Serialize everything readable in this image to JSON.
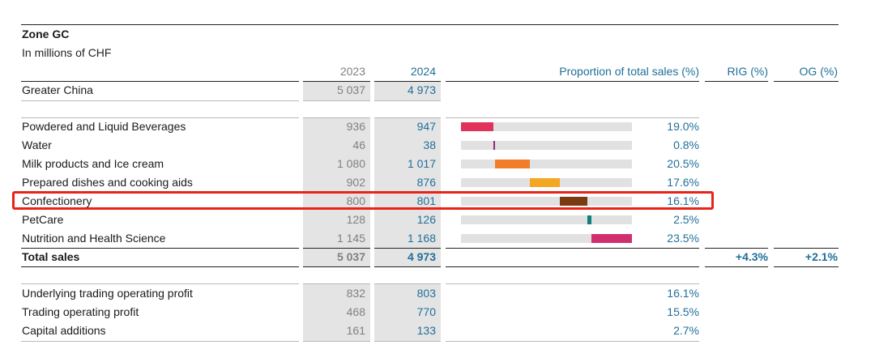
{
  "zone": {
    "title": "Zone GC",
    "subtitle": "In millions of CHF"
  },
  "headers": {
    "y2023": "2023",
    "y2024": "2024",
    "proportion": "Proportion of total sales (%)",
    "rig": "RIG (%)",
    "og": "OG (%)"
  },
  "greater_china": {
    "label": "Greater China",
    "v2023": "5 037",
    "v2024": "4 973"
  },
  "categories": [
    {
      "label": "Powdered and Liquid Beverages",
      "v2023": "936",
      "v2024": "947",
      "pct": "19.0%",
      "share": 19.0,
      "color": "#e0325a"
    },
    {
      "label": "Water",
      "v2023": "46",
      "v2024": "38",
      "pct": "0.8%",
      "share": 0.8,
      "color": "#8b2d7a"
    },
    {
      "label": "Milk products and Ice cream",
      "v2023": "1 080",
      "v2024": "1 017",
      "pct": "20.5%",
      "share": 20.5,
      "color": "#f07d2a"
    },
    {
      "label": "Prepared dishes and cooking aids",
      "v2023": "902",
      "v2024": "876",
      "pct": "17.6%",
      "share": 17.6,
      "color": "#f5a623"
    },
    {
      "label": "Confectionery",
      "v2023": "800",
      "v2024": "801",
      "pct": "16.1%",
      "share": 16.1,
      "color": "#7a3a12"
    },
    {
      "label": "PetCare",
      "v2023": "128",
      "v2024": "126",
      "pct": "2.5%",
      "share": 2.5,
      "color": "#137d7d"
    },
    {
      "label": "Nutrition and Health Science",
      "v2023": "1 145",
      "v2024": "1 168",
      "pct": "23.5%",
      "share": 23.5,
      "color": "#d1306f"
    }
  ],
  "total": {
    "label": "Total sales",
    "v2023": "5 037",
    "v2024": "4 973",
    "rig": "+4.3%",
    "og": "+2.1%"
  },
  "profit": [
    {
      "label": "Underlying trading operating profit",
      "v2023": "832",
      "v2024": "803",
      "pct": "16.1%"
    },
    {
      "label": "Trading operating profit",
      "v2023": "468",
      "v2024": "770",
      "pct": "15.5%"
    },
    {
      "label": "Capital additions",
      "v2023": "161",
      "v2024": "133",
      "pct": "2.7%"
    }
  ],
  "highlighted_row": "Confectionery"
}
